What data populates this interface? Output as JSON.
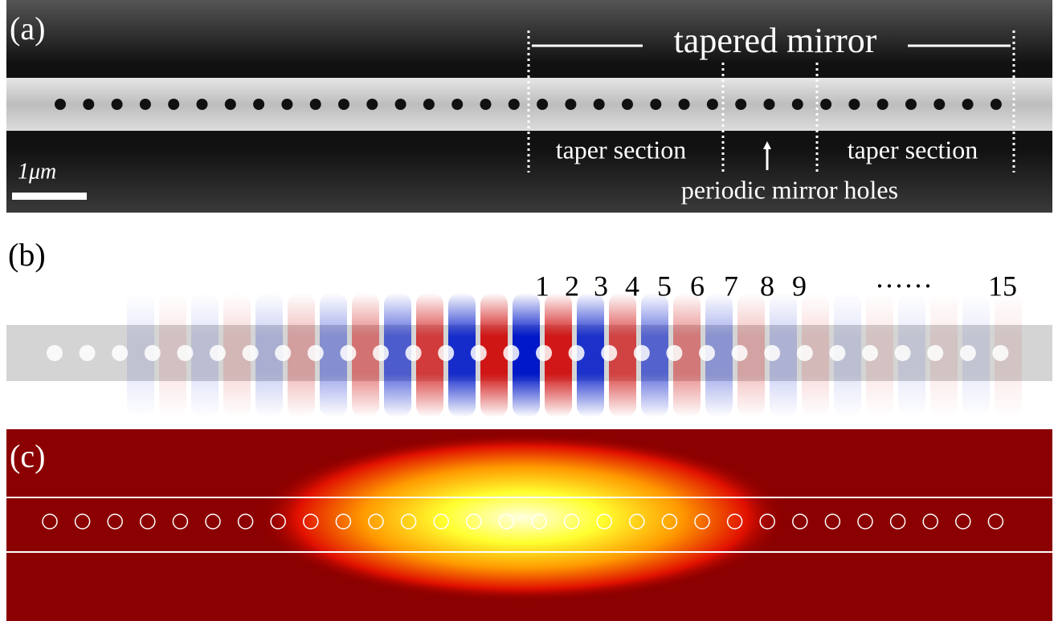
{
  "panels": {
    "a": {
      "label": "(a)",
      "title": "tapered mirror",
      "left_section": "taper section",
      "right_section": "taper section",
      "center_note": "periodic mirror holes",
      "scale_bar": "1μm"
    },
    "b": {
      "label": "(b)",
      "hole_numbers": [
        "1",
        "2",
        "3",
        "4",
        "5",
        "6",
        "7",
        "8",
        "9"
      ],
      "ellipsis": "······",
      "last_number": "15"
    },
    "c": {
      "label": "(c)"
    }
  }
}
